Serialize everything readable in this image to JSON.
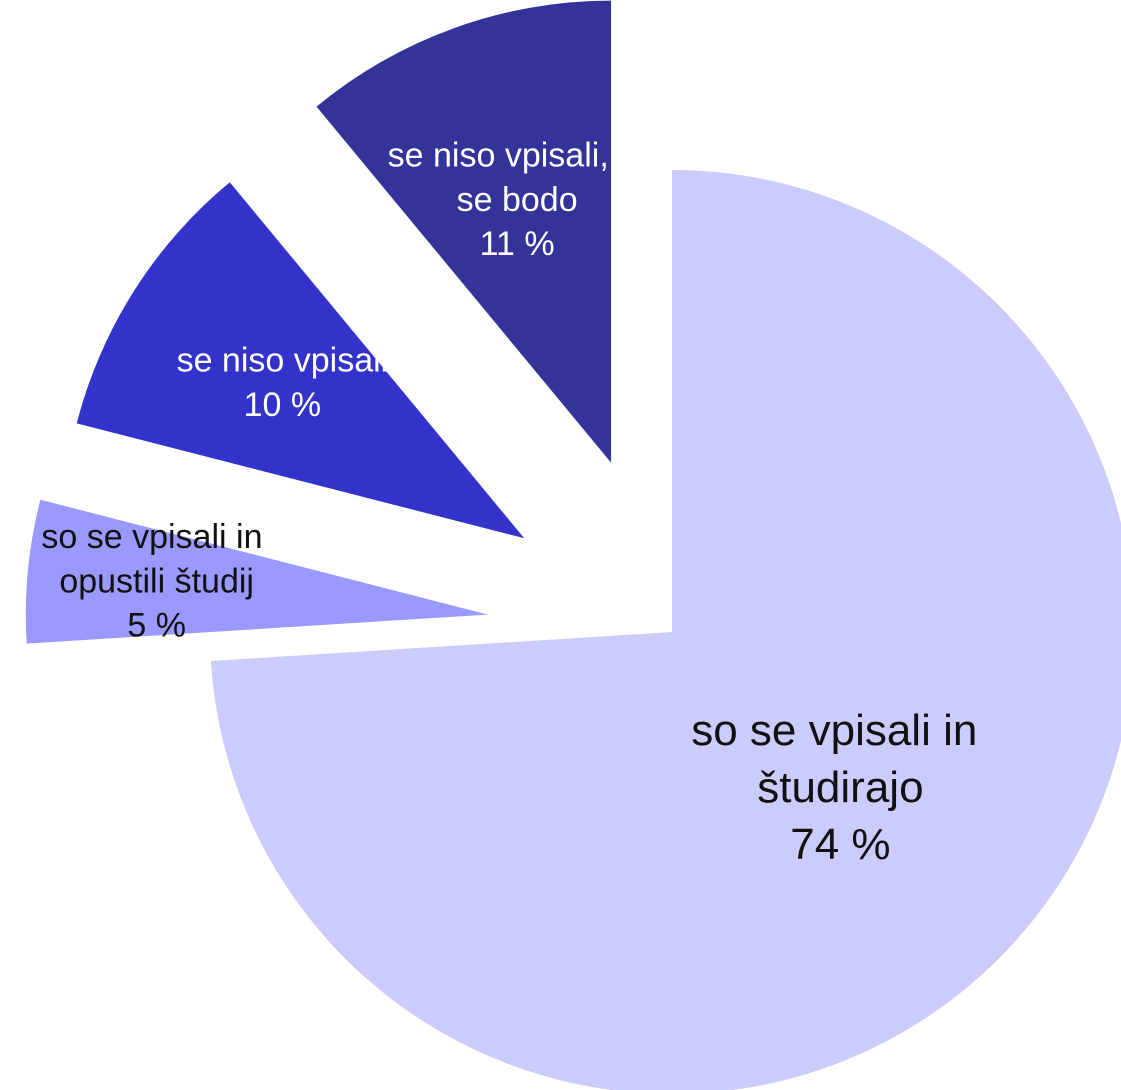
{
  "chart_data": {
    "type": "pie",
    "categories": [
      "so se vpisali in študirajo",
      "so se vpisali in opustili študij",
      "se niso vpisali",
      "se niso vpisali, a se bodo"
    ],
    "values": [
      74,
      5,
      10,
      11
    ],
    "value_labels": [
      "74 %",
      "5 %",
      "10 %",
      "11 %"
    ],
    "colors": [
      "#ccccfc",
      "#9999ff",
      "#3333cc",
      "#333399"
    ],
    "label_colors": [
      "#111111",
      "#111111",
      "#ffffff",
      "#ffffff"
    ]
  }
}
